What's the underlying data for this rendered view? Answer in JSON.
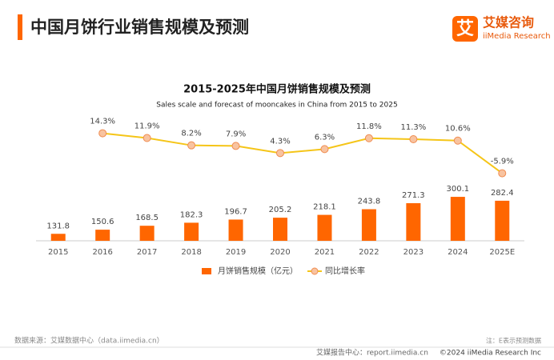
{
  "header": {
    "title": "中国月饼行业销售规模及预测",
    "logo_icon": "艾",
    "logo_cn": "艾媒咨询",
    "logo_en": "iiMedia Research"
  },
  "chart_data": {
    "type": "bar",
    "title": "2015-2025年中国月饼销售规模及预测",
    "subtitle": "Sales scale and forecast of mooncakes in China from 2015 to 2025",
    "categories": [
      "2015",
      "2016",
      "2017",
      "2018",
      "2019",
      "2020",
      "2021",
      "2022",
      "2023",
      "2024",
      "2025E"
    ],
    "series": [
      {
        "name": "月饼销售规模（亿元）",
        "color": "#ff6600",
        "values": [
          131.8,
          150.6,
          168.5,
          182.3,
          196.7,
          205.2,
          218.1,
          243.8,
          271.3,
          300.1,
          282.4
        ]
      },
      {
        "name": "同比增长率",
        "type": "line",
        "axis": "y2",
        "color": "#f5c518",
        "marker_color": "#f8c3a0",
        "values": [
          null,
          14.3,
          11.9,
          8.2,
          7.9,
          4.3,
          6.3,
          11.8,
          11.3,
          10.6,
          -5.9
        ],
        "value_labels": [
          null,
          "14.3%",
          "11.9%",
          "8.2%",
          "7.9%",
          "4.3%",
          "6.3%",
          "11.8%",
          "11.3%",
          "10.6%",
          "-5.9%"
        ]
      }
    ],
    "ylim": [
      100,
      650
    ],
    "y2lim": [
      -40,
      21
    ],
    "legend": "bottom"
  },
  "footer": {
    "source": "数据来源：艾媒数据中心（data.iimedia.cn）",
    "note": "注：E表示预测数据",
    "report_center": "艾媒报告中心：report.iimedia.cn",
    "copyright": "©2024  iiMedia Research  Inc"
  }
}
